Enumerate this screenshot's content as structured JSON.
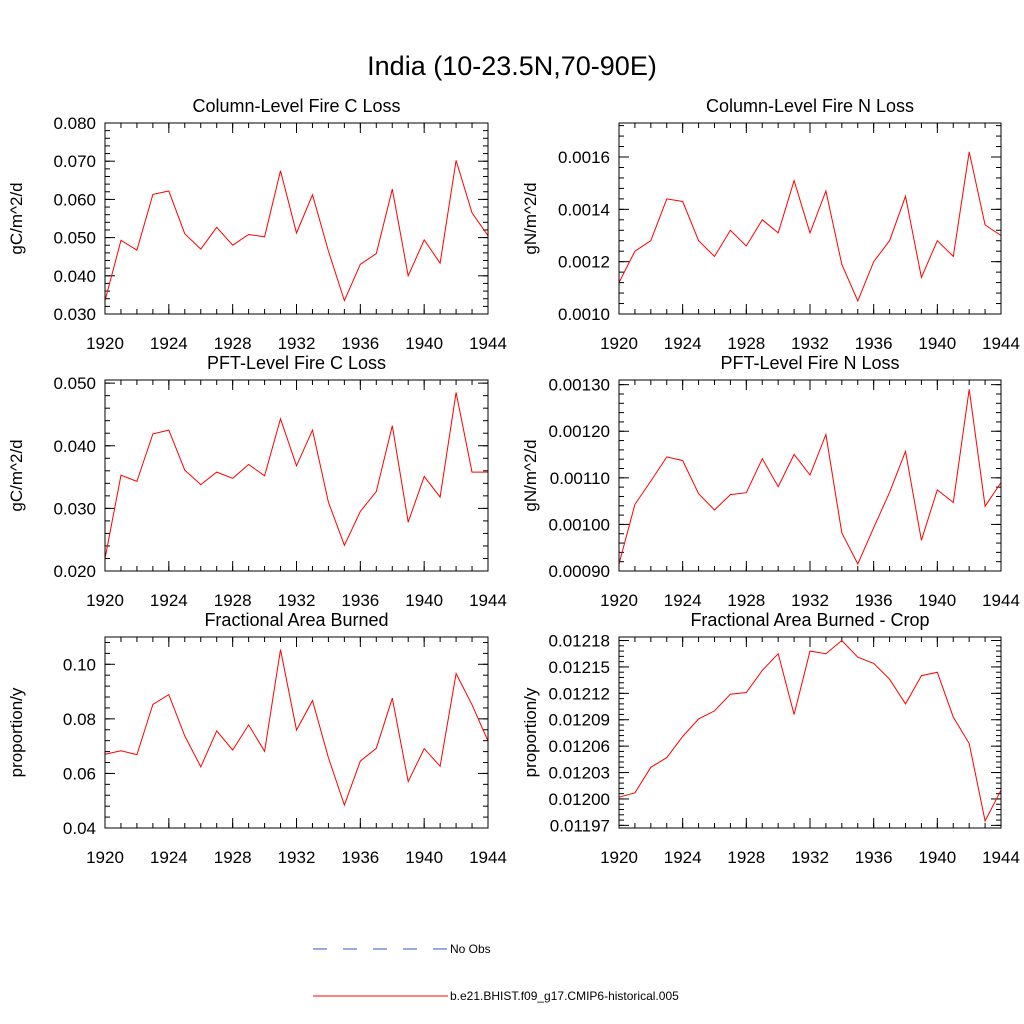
{
  "figure": {
    "title": "India (10-23.5N,70-90E)"
  },
  "legend": {
    "items": [
      {
        "label": "No Obs",
        "color": "#3355cc",
        "style": "dashed"
      },
      {
        "label": "b.e21.BHIST.f09_g17.CMIP6-historical.005",
        "color": "#ff0000",
        "style": "solid"
      }
    ]
  },
  "chart_data": [
    {
      "type": "line",
      "title": "Column-Level Fire C Loss",
      "ylabel": "gC/m^2/d",
      "xlabel": "",
      "xlim": [
        1920,
        1944
      ],
      "ylim": [
        0.03,
        0.08
      ],
      "xticks": [
        1920,
        1924,
        1928,
        1932,
        1936,
        1940,
        1944
      ],
      "xtick_labels": [
        "1920",
        "1924",
        "1928",
        "1932",
        "1936",
        "1940",
        "1944"
      ],
      "yticks": [
        0.03,
        0.04,
        0.05,
        0.06,
        0.07,
        0.08
      ],
      "ytick_labels": [
        "0.030",
        "0.040",
        "0.050",
        "0.060",
        "0.070",
        "0.080"
      ],
      "x": [
        1920,
        1921,
        1922,
        1923,
        1924,
        1925,
        1926,
        1927,
        1928,
        1929,
        1930,
        1931,
        1932,
        1933,
        1934,
        1935,
        1936,
        1937,
        1938,
        1939,
        1940,
        1941,
        1942,
        1943,
        1944
      ],
      "series": [
        {
          "name": "b.e21.BHIST.f09_g17.CMIP6-historical.005",
          "color": "#ff0000",
          "values": [
            0.0335,
            0.0493,
            0.0467,
            0.0613,
            0.0622,
            0.051,
            0.047,
            0.0527,
            0.048,
            0.0508,
            0.0502,
            0.0675,
            0.0512,
            0.0612,
            0.0465,
            0.0335,
            0.043,
            0.0458,
            0.0627,
            0.04,
            0.0494,
            0.0433,
            0.0702,
            0.0565,
            0.0505
          ]
        }
      ]
    },
    {
      "type": "line",
      "title": "Column-Level Fire N Loss",
      "ylabel": "gN/m^2/d",
      "xlabel": "",
      "xlim": [
        1920,
        1944
      ],
      "ylim": [
        0.001,
        0.00173
      ],
      "xticks": [
        1920,
        1924,
        1928,
        1932,
        1936,
        1940,
        1944
      ],
      "xtick_labels": [
        "1920",
        "1924",
        "1928",
        "1932",
        "1936",
        "1940",
        "1944"
      ],
      "yticks": [
        0.001,
        0.0012,
        0.0014,
        0.0016
      ],
      "ytick_labels": [
        "0.0010",
        "0.0012",
        "0.0014",
        "0.0016"
      ],
      "x": [
        1920,
        1921,
        1922,
        1923,
        1924,
        1925,
        1926,
        1927,
        1928,
        1929,
        1930,
        1931,
        1932,
        1933,
        1934,
        1935,
        1936,
        1937,
        1938,
        1939,
        1940,
        1941,
        1942,
        1943,
        1944
      ],
      "series": [
        {
          "name": "b.e21.BHIST.f09_g17.CMIP6-historical.005",
          "color": "#ff0000",
          "values": [
            0.00112,
            0.00124,
            0.00128,
            0.00144,
            0.00143,
            0.00128,
            0.00122,
            0.00132,
            0.00126,
            0.00136,
            0.00131,
            0.00151,
            0.00131,
            0.00147,
            0.00119,
            0.00105,
            0.0012,
            0.00128,
            0.00145,
            0.00114,
            0.00128,
            0.00122,
            0.00162,
            0.00134,
            0.0013
          ]
        }
      ]
    },
    {
      "type": "line",
      "title": "PFT-Level Fire C Loss",
      "ylabel": "gC/m^2/d",
      "xlabel": "",
      "xlim": [
        1920,
        1944
      ],
      "ylim": [
        0.02,
        0.0505
      ],
      "xticks": [
        1920,
        1924,
        1928,
        1932,
        1936,
        1940,
        1944
      ],
      "xtick_labels": [
        "1920",
        "1924",
        "1928",
        "1932",
        "1936",
        "1940",
        "1944"
      ],
      "yticks": [
        0.02,
        0.03,
        0.04,
        0.05
      ],
      "ytick_labels": [
        "0.020",
        "0.030",
        "0.040",
        "0.050"
      ],
      "x": [
        1920,
        1921,
        1922,
        1923,
        1924,
        1925,
        1926,
        1927,
        1928,
        1929,
        1930,
        1931,
        1932,
        1933,
        1934,
        1935,
        1936,
        1937,
        1938,
        1939,
        1940,
        1941,
        1942,
        1943,
        1944
      ],
      "series": [
        {
          "name": "b.e21.BHIST.f09_g17.CMIP6-historical.005",
          "color": "#ff0000",
          "values": [
            0.022,
            0.0353,
            0.0343,
            0.0419,
            0.0425,
            0.0361,
            0.0338,
            0.0358,
            0.0348,
            0.037,
            0.0352,
            0.0443,
            0.0368,
            0.0425,
            0.031,
            0.0241,
            0.0295,
            0.0327,
            0.0432,
            0.0278,
            0.0351,
            0.0318,
            0.0485,
            0.0358,
            0.0358
          ]
        }
      ]
    },
    {
      "type": "line",
      "title": "PFT-Level Fire N Loss",
      "ylabel": "gN/m^2/d",
      "xlabel": "",
      "xlim": [
        1920,
        1944
      ],
      "ylim": [
        0.0009,
        0.00131
      ],
      "xticks": [
        1920,
        1924,
        1928,
        1932,
        1936,
        1940,
        1944
      ],
      "xtick_labels": [
        "1920",
        "1924",
        "1928",
        "1932",
        "1936",
        "1940",
        "1944"
      ],
      "yticks": [
        0.0009,
        0.001,
        0.0011,
        0.0012,
        0.0013
      ],
      "ytick_labels": [
        "0.00090",
        "0.00100",
        "0.00110",
        "0.00120",
        "0.00130"
      ],
      "x": [
        1920,
        1921,
        1922,
        1923,
        1924,
        1925,
        1926,
        1927,
        1928,
        1929,
        1930,
        1931,
        1932,
        1933,
        1934,
        1935,
        1936,
        1937,
        1938,
        1939,
        1940,
        1941,
        1942,
        1943,
        1944
      ],
      "series": [
        {
          "name": "b.e21.BHIST.f09_g17.CMIP6-historical.005",
          "color": "#ff0000",
          "values": [
            0.000915,
            0.001043,
            0.001093,
            0.001145,
            0.001137,
            0.001066,
            0.001031,
            0.001064,
            0.001068,
            0.001141,
            0.001081,
            0.00115,
            0.001106,
            0.001193,
            0.000982,
            0.000915,
            0.000993,
            0.001069,
            0.001157,
            0.000966,
            0.001074,
            0.001047,
            0.00129,
            0.001039,
            0.00109
          ]
        }
      ]
    },
    {
      "type": "line",
      "title": "Fractional Area Burned",
      "ylabel": "proportion/y",
      "xlabel": "",
      "xlim": [
        1920,
        1944
      ],
      "ylim": [
        0.04,
        0.11
      ],
      "xticks": [
        1920,
        1924,
        1928,
        1932,
        1936,
        1940,
        1944
      ],
      "xtick_labels": [
        "1920",
        "1924",
        "1928",
        "1932",
        "1936",
        "1940",
        "1944"
      ],
      "yticks": [
        0.04,
        0.06,
        0.08,
        0.1
      ],
      "ytick_labels": [
        "0.04",
        "0.06",
        "0.08",
        "0.10"
      ],
      "x": [
        1920,
        1921,
        1922,
        1923,
        1924,
        1925,
        1926,
        1927,
        1928,
        1929,
        1930,
        1931,
        1932,
        1933,
        1934,
        1935,
        1936,
        1937,
        1938,
        1939,
        1940,
        1941,
        1942,
        1943,
        1944
      ],
      "series": [
        {
          "name": "b.e21.BHIST.f09_g17.CMIP6-historical.005",
          "color": "#ff0000",
          "values": [
            0.067,
            0.0683,
            0.0669,
            0.0853,
            0.0889,
            0.0737,
            0.0624,
            0.0756,
            0.0686,
            0.0778,
            0.0681,
            0.1054,
            0.0759,
            0.0867,
            0.0658,
            0.0484,
            0.0645,
            0.0692,
            0.0876,
            0.057,
            0.0691,
            0.0626,
            0.0966,
            0.0852,
            0.0719
          ]
        }
      ]
    },
    {
      "type": "line",
      "title": "Fractional Area Burned - Crop",
      "ylabel": "proportion/y",
      "xlabel": "",
      "xlim": [
        1920,
        1944
      ],
      "ylim": [
        0.011967,
        0.012184
      ],
      "xticks": [
        1920,
        1924,
        1928,
        1932,
        1936,
        1940,
        1944
      ],
      "xtick_labels": [
        "1920",
        "1924",
        "1928",
        "1932",
        "1936",
        "1940",
        "1944"
      ],
      "yticks": [
        0.01197,
        0.012,
        0.01203,
        0.01206,
        0.01209,
        0.01212,
        0.01215,
        0.01218
      ],
      "ytick_labels": [
        "0.01197",
        "0.01200",
        "0.01203",
        "0.01206",
        "0.01209",
        "0.01212",
        "0.01215",
        "0.01218"
      ],
      "x": [
        1920,
        1921,
        1922,
        1923,
        1924,
        1925,
        1926,
        1927,
        1928,
        1929,
        1930,
        1931,
        1932,
        1933,
        1934,
        1935,
        1936,
        1937,
        1938,
        1939,
        1940,
        1941,
        1942,
        1943,
        1944
      ],
      "series": [
        {
          "name": "b.e21.BHIST.f09_g17.CMIP6-historical.005",
          "color": "#ff0000",
          "values": [
            0.012002,
            0.012007,
            0.012036,
            0.012047,
            0.012071,
            0.012091,
            0.0121,
            0.012119,
            0.012121,
            0.012146,
            0.012165,
            0.012096,
            0.012168,
            0.012165,
            0.01218,
            0.012161,
            0.012154,
            0.012136,
            0.012108,
            0.01214,
            0.012144,
            0.012093,
            0.012063,
            0.011975,
            0.01201
          ]
        }
      ]
    }
  ]
}
